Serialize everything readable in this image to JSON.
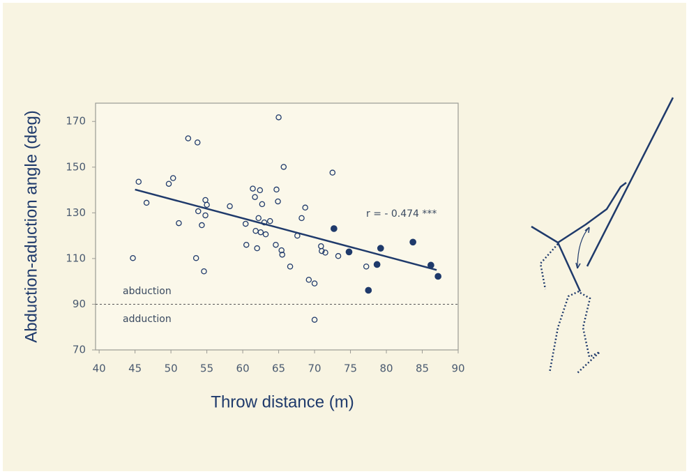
{
  "chart_data": {
    "type": "scatter",
    "x_label": "Throw distance (m)",
    "y_label": "Abduction-aduction angle (deg)",
    "xlim": [
      39.5,
      90
    ],
    "ylim": [
      70,
      178
    ],
    "xticks": [
      40,
      45,
      50,
      55,
      60,
      65,
      70,
      75,
      80,
      85,
      90
    ],
    "yticks": [
      70,
      90,
      110,
      130,
      150,
      170
    ],
    "hline": 90,
    "annotations": [
      "r = - 0.474 ***",
      "abduction",
      "adduction"
    ],
    "series": [
      {
        "marker": "open",
        "color": "#1f3a6b",
        "x": [
          44.7,
          45.5,
          46.6,
          49.7,
          50.3,
          51.1,
          52.4,
          53.7,
          53.5,
          53.8,
          54.3,
          54.8,
          55.0,
          54.6,
          54.8,
          58.2,
          60.4,
          60.5,
          61.4,
          61.7,
          62.4,
          61.8,
          62.0,
          62.2,
          62.5,
          62.7,
          63.0,
          63.2,
          63.8,
          64.7,
          64.9,
          64.6,
          65.0,
          65.4,
          65.5,
          65.7,
          66.6,
          67.6,
          68.2,
          68.7,
          69.2,
          70.0,
          70.0,
          70.9,
          71.0,
          71.5,
          72.5,
          73.3,
          77.2
        ],
        "values": [
          110.2,
          143.6,
          134.4,
          142.7,
          145.2,
          125.5,
          162.6,
          160.8,
          110.2,
          130.7,
          124.6,
          135.6,
          133.5,
          104.4,
          128.9,
          132.9,
          125.2,
          116.0,
          140.6,
          136.9,
          139.9,
          122.1,
          114.5,
          127.7,
          121.5,
          133.8,
          125.8,
          120.6,
          126.4,
          140.2,
          135.0,
          116.0,
          171.8,
          113.6,
          111.7,
          150.1,
          106.5,
          120.0,
          127.7,
          132.3,
          100.7,
          99.1,
          83.2,
          115.4,
          113.3,
          112.6,
          147.6,
          111.1,
          106.5
        ]
      },
      {
        "marker": "filled",
        "color": "#1f3a6b",
        "x": [
          72.7,
          74.8,
          77.5,
          78.7,
          79.2,
          83.7,
          86.2,
          87.2
        ],
        "values": [
          123.1,
          112.9,
          96.1,
          107.4,
          114.5,
          117.2,
          107.1,
          102.2
        ]
      },
      {
        "marker": "line",
        "color": "#1f3a6b",
        "x": [
          45,
          87
        ],
        "values": [
          140.2,
          105.0
        ]
      }
    ]
  }
}
